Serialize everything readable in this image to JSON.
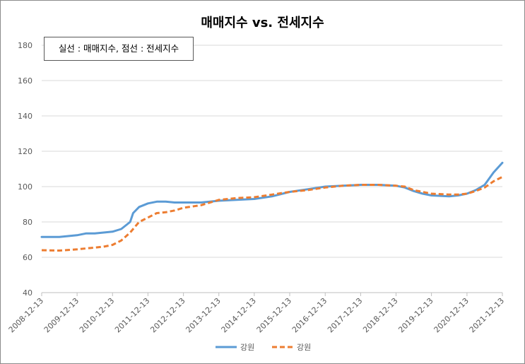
{
  "chart_data": {
    "type": "line",
    "title": "매매지수 vs. 전세지수",
    "annotation": "실선 : 매매지수, 점선 : 전세지수",
    "xlabel": "",
    "ylabel": "",
    "ylim": [
      40,
      180
    ],
    "yticks": [
      40,
      60,
      80,
      100,
      120,
      140,
      160,
      180
    ],
    "grid": true,
    "legend_position": "bottom",
    "x_tick_labels": [
      "2008-12-13",
      "2009-12-13",
      "2010-12-13",
      "2011-12-13",
      "2012-12-13",
      "2013-12-13",
      "2014-12-13",
      "2015-12-13",
      "2016-12-13",
      "2017-12-13",
      "2018-12-13",
      "2019-12-13",
      "2020-12-13",
      "2021-12-13"
    ],
    "x_start": "2008-12-13",
    "x_end": "2021-12-13",
    "series": [
      {
        "name": "강원",
        "style": "solid",
        "color": "#5b9bd5",
        "x": [
          "2008-12-13",
          "2009-06-13",
          "2009-12-13",
          "2010-03-13",
          "2010-06-13",
          "2010-09-13",
          "2010-12-13",
          "2011-03-13",
          "2011-06-13",
          "2011-07-13",
          "2011-09-13",
          "2011-12-13",
          "2012-03-13",
          "2012-06-13",
          "2012-09-13",
          "2012-12-13",
          "2013-06-13",
          "2013-12-13",
          "2014-06-13",
          "2014-12-13",
          "2015-06-13",
          "2015-12-13",
          "2016-06-13",
          "2016-12-13",
          "2017-06-13",
          "2017-12-13",
          "2018-06-13",
          "2018-12-13",
          "2019-03-13",
          "2019-06-13",
          "2019-09-13",
          "2019-12-13",
          "2020-06-13",
          "2020-09-13",
          "2020-12-13",
          "2021-03-13",
          "2021-06-13",
          "2021-09-13",
          "2021-12-13"
        ],
        "y": [
          71.5,
          71.5,
          72.5,
          73.5,
          73.5,
          74.0,
          74.5,
          76.0,
          80.0,
          85.0,
          88.5,
          90.5,
          91.5,
          91.5,
          91.0,
          91.0,
          91.0,
          92.0,
          92.5,
          93.0,
          94.5,
          97.0,
          98.5,
          100.0,
          100.5,
          101.0,
          101.0,
          100.5,
          99.5,
          97.5,
          96.0,
          95.0,
          94.5,
          95.0,
          96.0,
          98.0,
          101.0,
          108.0,
          113.5
        ]
      },
      {
        "name": "강원",
        "style": "dashed",
        "color": "#ed7d31",
        "x": [
          "2008-12-13",
          "2009-06-13",
          "2009-12-13",
          "2010-03-13",
          "2010-06-13",
          "2010-09-13",
          "2010-12-13",
          "2011-03-13",
          "2011-06-13",
          "2011-09-13",
          "2011-12-13",
          "2012-03-13",
          "2012-06-13",
          "2012-09-13",
          "2012-12-13",
          "2013-06-13",
          "2013-12-13",
          "2014-06-13",
          "2014-12-13",
          "2015-06-13",
          "2015-12-13",
          "2016-06-13",
          "2016-12-13",
          "2017-06-13",
          "2017-12-13",
          "2018-06-13",
          "2018-12-13",
          "2019-03-13",
          "2019-06-13",
          "2019-09-13",
          "2019-12-13",
          "2020-06-13",
          "2020-09-13",
          "2020-12-13",
          "2021-03-13",
          "2021-06-13",
          "2021-09-13",
          "2021-12-13"
        ],
        "y": [
          64.0,
          63.8,
          64.5,
          65.0,
          65.5,
          66.0,
          67.0,
          69.5,
          74.0,
          80.0,
          82.5,
          85.0,
          85.5,
          86.5,
          88.0,
          89.5,
          92.5,
          93.5,
          94.0,
          95.5,
          97.0,
          98.0,
          99.5,
          100.5,
          101.0,
          101.0,
          100.5,
          100.0,
          98.0,
          97.0,
          96.0,
          95.5,
          95.5,
          96.0,
          97.5,
          99.5,
          103.0,
          105.5
        ]
      }
    ]
  }
}
